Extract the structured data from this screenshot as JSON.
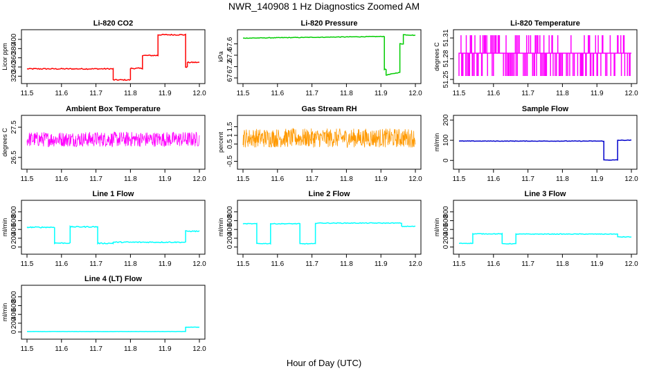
{
  "title": "NWR_140908  1 Hz Diagnostics Zoomed AM",
  "xlabel": "Hour of Day (UTC)",
  "colors": {
    "red": "#ff0000",
    "green": "#00cc00",
    "magenta": "#ff00ff",
    "orange": "#ff9900",
    "blue": "#0000cc",
    "cyan": "#00ffff"
  },
  "chart_data": [
    {
      "type": "line",
      "title": "Li-820 CO2",
      "ylabel": "Licor ppm",
      "color": "red",
      "xlim": [
        11.5,
        12.0
      ],
      "ylim": [
        310,
        415
      ],
      "x_ticks": [
        "11.5",
        "11.6",
        "11.7",
        "11.8",
        "11.9",
        "12.0"
      ],
      "y_ticks": [
        320,
        340,
        360,
        380,
        400
      ],
      "style": "line",
      "noise": 1.2,
      "segments": [
        [
          11.5,
          11.75,
          336
        ],
        [
          11.75,
          11.8,
          312
        ],
        [
          11.8,
          11.835,
          337
        ],
        [
          11.835,
          11.88,
          365
        ],
        [
          11.88,
          11.96,
          410
        ],
        [
          11.96,
          11.965,
          340
        ],
        [
          11.965,
          12.0,
          350
        ]
      ]
    },
    {
      "type": "line",
      "title": "Li-820 Pressure",
      "ylabel": "kPa",
      "color": "green",
      "xlim": [
        11.5,
        12.0
      ],
      "ylim": [
        66.95,
        67.8
      ],
      "x_ticks": [
        "11.5",
        "11.6",
        "11.7",
        "11.8",
        "11.9",
        "12.0"
      ],
      "y_ticks": [
        67.0,
        67.2,
        67.4,
        67.6
      ],
      "style": "line",
      "noise": 0.005,
      "segments": [
        [
          11.5,
          11.91,
          67.7,
          67.73
        ],
        [
          11.91,
          11.915,
          67.15
        ],
        [
          11.915,
          11.955,
          67.05,
          67.1
        ],
        [
          11.955,
          11.965,
          67.6
        ],
        [
          11.965,
          12.0,
          67.76,
          67.75
        ]
      ]
    },
    {
      "type": "line",
      "title": "Li-820 Temperature",
      "ylabel": "degrees C",
      "color": "magenta",
      "xlim": [
        11.5,
        12.0
      ],
      "ylim": [
        51.248,
        51.318
      ],
      "x_ticks": [
        "11.5",
        "11.6",
        "11.7",
        "11.8",
        "11.9",
        "12.0"
      ],
      "y_ticks": [
        51.25,
        51.28,
        51.31
      ],
      "style": "digital",
      "levels": [
        51.255,
        51.288,
        51.314
      ]
    },
    {
      "type": "line",
      "title": "Ambient Box Temperature",
      "ylabel": "degrees C",
      "color": "magenta",
      "xlim": [
        11.5,
        12.0
      ],
      "ylim": [
        26.2,
        27.8
      ],
      "x_ticks": [
        "11.5",
        "11.6",
        "11.7",
        "11.8",
        "11.9",
        "12.0"
      ],
      "y_ticks": [
        26.5,
        27.5
      ],
      "style": "noise",
      "noise": 0.25,
      "segments": [
        [
          11.5,
          12.0,
          27.1
        ]
      ]
    },
    {
      "type": "line",
      "title": "Gas Stream RH",
      "ylabel": "percent",
      "color": "orange",
      "xlim": [
        11.5,
        12.0
      ],
      "ylim": [
        -0.8,
        2.0
      ],
      "x_ticks": [
        "11.5",
        "11.6",
        "11.7",
        "11.8",
        "11.9",
        "12.0"
      ],
      "y_ticks": [
        -0.5,
        0.5,
        1.0,
        1.5
      ],
      "style": "noise",
      "noise": 0.55,
      "segments": [
        [
          11.5,
          12.0,
          0.85
        ]
      ]
    },
    {
      "type": "line",
      "title": "Sample Flow",
      "ylabel": "ml/min",
      "color": "blue",
      "xlim": [
        11.5,
        12.0
      ],
      "ylim": [
        -30,
        210
      ],
      "x_ticks": [
        "11.5",
        "11.6",
        "11.7",
        "11.8",
        "11.9",
        "12.0"
      ],
      "y_ticks": [
        0,
        100,
        200
      ],
      "style": "line",
      "noise": 1.2,
      "segments": [
        [
          11.5,
          11.92,
          96
        ],
        [
          11.92,
          11.96,
          2
        ],
        [
          11.96,
          12.0,
          100
        ]
      ]
    },
    {
      "type": "line",
      "title": "Line 1 Flow",
      "ylabel": "ml/min",
      "color": "cyan",
      "xlim": [
        11.5,
        12.0
      ],
      "ylim": [
        -100,
        1000
      ],
      "x_ticks": [
        "11.5",
        "11.6",
        "11.7",
        "11.8",
        "11.9",
        "12.0"
      ],
      "y_ticks": [
        0,
        200,
        400,
        600,
        800
      ],
      "style": "line",
      "noise": 12,
      "segments": [
        [
          11.5,
          11.58,
          450
        ],
        [
          11.58,
          11.625,
          90
        ],
        [
          11.625,
          11.705,
          460
        ],
        [
          11.705,
          11.75,
          85
        ],
        [
          11.75,
          11.96,
          110
        ],
        [
          11.96,
          12.0,
          360
        ]
      ]
    },
    {
      "type": "line",
      "title": "Line 2 Flow",
      "ylabel": "ml/min",
      "color": "cyan",
      "xlim": [
        11.5,
        12.0
      ],
      "ylim": [
        -100,
        1000
      ],
      "x_ticks": [
        "11.5",
        "11.6",
        "11.7",
        "11.8",
        "11.9",
        "12.0"
      ],
      "y_ticks": [
        0,
        200,
        400,
        600,
        800
      ],
      "style": "line",
      "noise": 8,
      "segments": [
        [
          11.5,
          11.54,
          530
        ],
        [
          11.54,
          11.58,
          80
        ],
        [
          11.58,
          11.665,
          530
        ],
        [
          11.665,
          11.71,
          75
        ],
        [
          11.71,
          11.96,
          545
        ],
        [
          11.96,
          12.0,
          470
        ]
      ]
    },
    {
      "type": "line",
      "title": "Line 3 Flow",
      "ylabel": "ml/min",
      "color": "cyan",
      "xlim": [
        11.5,
        12.0
      ],
      "ylim": [
        -100,
        1000
      ],
      "x_ticks": [
        "11.5",
        "11.6",
        "11.7",
        "11.8",
        "11.9",
        "12.0"
      ],
      "y_ticks": [
        0,
        200,
        400,
        600,
        800
      ],
      "style": "line",
      "noise": 7,
      "segments": [
        [
          11.5,
          11.54,
          85
        ],
        [
          11.54,
          11.625,
          300
        ],
        [
          11.625,
          11.665,
          75
        ],
        [
          11.665,
          11.96,
          295
        ],
        [
          11.96,
          12.0,
          230
        ]
      ]
    },
    {
      "type": "line",
      "title": "Line 4 (LT) Flow",
      "ylabel": "ml/min",
      "color": "cyan",
      "xlim": [
        11.5,
        12.0
      ],
      "ylim": [
        -100,
        1000
      ],
      "x_ticks": [
        "11.5",
        "11.6",
        "11.7",
        "11.8",
        "11.9",
        "12.0"
      ],
      "y_ticks": [
        0,
        200,
        400,
        600,
        800
      ],
      "style": "line",
      "noise": 2,
      "segments": [
        [
          11.5,
          11.96,
          10
        ],
        [
          11.96,
          12.0,
          110
        ]
      ]
    }
  ]
}
